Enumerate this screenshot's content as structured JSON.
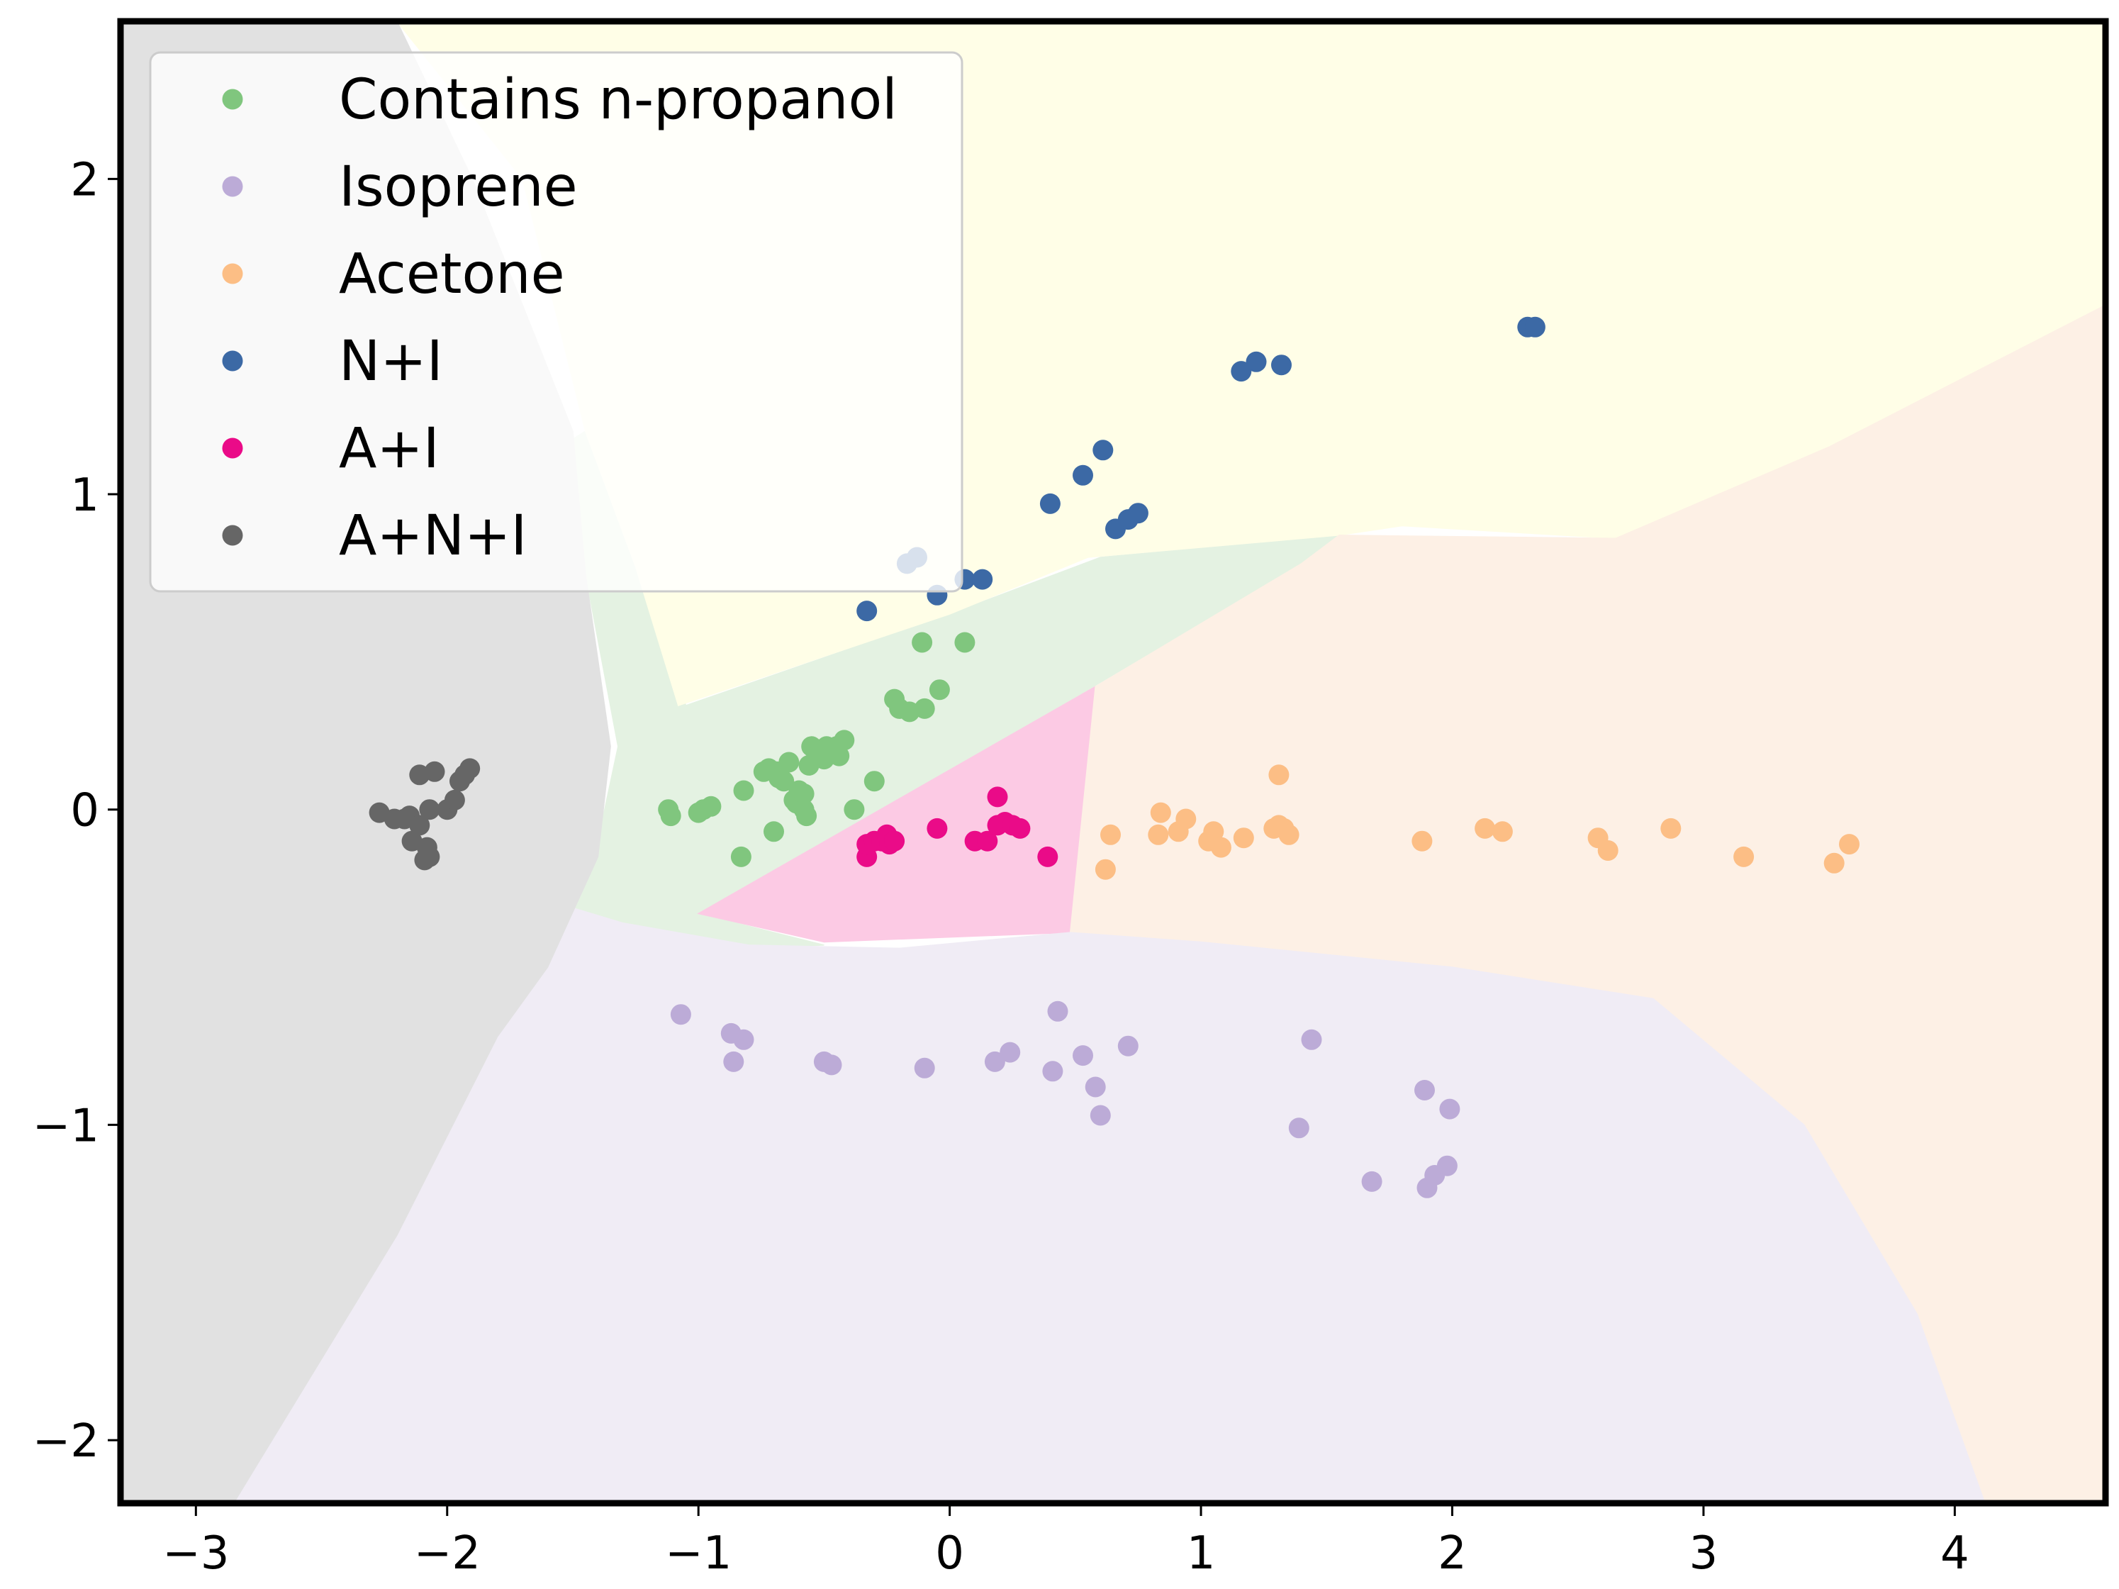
{
  "chart_data": {
    "type": "scatter",
    "title": "",
    "xlabel": "",
    "ylabel": "",
    "xlim": [
      -3.3,
      4.6
    ],
    "ylim": [
      -2.2,
      2.5
    ],
    "xticks": [
      -3,
      -2,
      -1,
      0,
      1,
      2,
      3,
      4
    ],
    "yticks": [
      -2,
      -1,
      0,
      1,
      2
    ],
    "xtick_labels": [
      "−3",
      "−2",
      "−1",
      "0",
      "1",
      "2",
      "3",
      "4"
    ],
    "ytick_labels": [
      "−2",
      "−1",
      "0",
      "1",
      "2"
    ],
    "grid": false,
    "legend_position": "top-left",
    "regions": [
      {
        "class": "Contains n-propanol",
        "color": "#e4f2e2",
        "polygon": [
          [
            -1.55,
            1.15
          ],
          [
            -1.45,
            0.75
          ],
          [
            -1.32,
            0.2
          ],
          [
            -1.4,
            -0.1
          ],
          [
            -1.6,
            -0.55
          ],
          [
            -1.1,
            -0.45
          ],
          [
            -0.5,
            -0.43
          ],
          [
            -1.0,
            -0.33
          ],
          [
            0.55,
            0.38
          ],
          [
            1.4,
            0.78
          ],
          [
            1.55,
            0.87
          ],
          [
            0.6,
            0.8
          ],
          [
            0,
            0.62
          ],
          [
            -1.05,
            0.33
          ],
          [
            -1.25,
            0.77
          ],
          [
            -1.45,
            1.2
          ]
        ]
      },
      {
        "class": "N+I",
        "color": "#fffee7",
        "polygon": [
          [
            -2.2,
            2.5
          ],
          [
            4.6,
            2.5
          ],
          [
            4.6,
            1.6
          ],
          [
            3.5,
            1.15
          ],
          [
            2.65,
            0.86
          ],
          [
            1.8,
            0.9
          ],
          [
            1.55,
            0.87
          ],
          [
            0.55,
            0.8
          ],
          [
            0,
            0.62
          ],
          [
            -1.08,
            0.33
          ],
          [
            -1.25,
            0.77
          ],
          [
            -1.45,
            1.2
          ],
          [
            -1.7,
            2.0
          ]
        ]
      },
      {
        "class": "A+I",
        "color": "#fccae4",
        "polygon": [
          [
            -1.0,
            -0.33
          ],
          [
            0.58,
            0.39
          ],
          [
            0.48,
            -0.39
          ],
          [
            -0.5,
            -0.42
          ]
        ]
      },
      {
        "class": "Acetone",
        "color": "#fdf0e5",
        "polygon": [
          [
            0.58,
            0.39
          ],
          [
            1.4,
            0.78
          ],
          [
            1.55,
            0.87
          ],
          [
            2.65,
            0.86
          ],
          [
            3.5,
            1.15
          ],
          [
            4.6,
            1.6
          ],
          [
            4.6,
            -2.2
          ],
          [
            4.12,
            -2.2
          ],
          [
            3.85,
            -1.6
          ],
          [
            3.4,
            -1.0
          ],
          [
            2.8,
            -0.6
          ],
          [
            2.0,
            -0.5
          ],
          [
            1.0,
            -0.42
          ],
          [
            0.48,
            -0.39
          ]
        ]
      },
      {
        "class": "Isoprene",
        "color": "#f0ecf5",
        "polygon": [
          [
            -1.55,
            -0.3
          ],
          [
            -1.3,
            -0.36
          ],
          [
            -0.8,
            -0.43
          ],
          [
            -0.2,
            -0.44
          ],
          [
            0.48,
            -0.39
          ],
          [
            1.0,
            -0.42
          ],
          [
            2.0,
            -0.5
          ],
          [
            2.8,
            -0.6
          ],
          [
            3.4,
            -1.0
          ],
          [
            3.85,
            -1.6
          ],
          [
            4.12,
            -2.2
          ],
          [
            -2.85,
            -2.2
          ],
          [
            -2.2,
            -1.35
          ],
          [
            -1.8,
            -0.72
          ],
          [
            -1.65,
            -0.5
          ]
        ]
      },
      {
        "class": "A+N+I",
        "color": "#e1e1e1",
        "polygon": [
          [
            -3.3,
            2.5
          ],
          [
            -2.2,
            2.5
          ],
          [
            -1.9,
            2.0
          ],
          [
            -1.65,
            1.5
          ],
          [
            -1.5,
            1.2
          ],
          [
            -1.45,
            0.75
          ],
          [
            -1.35,
            0.2
          ],
          [
            -1.4,
            -0.15
          ],
          [
            -1.6,
            -0.5
          ],
          [
            -1.8,
            -0.72
          ],
          [
            -2.2,
            -1.35
          ],
          [
            -2.85,
            -2.2
          ],
          [
            -3.3,
            -2.2
          ]
        ]
      }
    ],
    "series": [
      {
        "name": "Contains n-propanol",
        "color": "#80c67e",
        "points": [
          [
            -1.12,
            0.0
          ],
          [
            -1.11,
            -0.02
          ],
          [
            -1.0,
            -0.01
          ],
          [
            -0.98,
            0.0
          ],
          [
            -0.95,
            0.01
          ],
          [
            -0.83,
            -0.15
          ],
          [
            -0.82,
            0.06
          ],
          [
            -0.74,
            0.12
          ],
          [
            -0.72,
            0.13
          ],
          [
            -0.7,
            -0.07
          ],
          [
            -0.69,
            0.12
          ],
          [
            -0.68,
            0.1
          ],
          [
            -0.66,
            0.09
          ],
          [
            -0.64,
            0.15
          ],
          [
            -0.62,
            0.03
          ],
          [
            -0.61,
            0.02
          ],
          [
            -0.6,
            0.06
          ],
          [
            -0.58,
            0.05
          ],
          [
            -0.58,
            0.0
          ],
          [
            -0.57,
            -0.02
          ],
          [
            -0.56,
            0.14
          ],
          [
            -0.55,
            0.2
          ],
          [
            -0.53,
            0.17
          ],
          [
            -0.51,
            0.18
          ],
          [
            -0.5,
            0.16
          ],
          [
            -0.49,
            0.2
          ],
          [
            -0.47,
            0.19
          ],
          [
            -0.45,
            0.2
          ],
          [
            -0.44,
            0.17
          ],
          [
            -0.42,
            0.22
          ],
          [
            -0.38,
            0.0
          ],
          [
            -0.3,
            0.09
          ],
          [
            -0.22,
            0.35
          ],
          [
            -0.2,
            0.32
          ],
          [
            -0.16,
            0.31
          ],
          [
            -0.11,
            0.53
          ],
          [
            -0.1,
            0.32
          ],
          [
            -0.04,
            0.38
          ],
          [
            0.06,
            0.53
          ]
        ]
      },
      {
        "name": "Isoprene",
        "color": "#bcabd7",
        "points": [
          [
            -1.07,
            -0.65
          ],
          [
            -0.87,
            -0.71
          ],
          [
            -0.86,
            -0.8
          ],
          [
            -0.82,
            -0.73
          ],
          [
            -0.5,
            -0.8
          ],
          [
            -0.47,
            -0.81
          ],
          [
            -0.1,
            -0.82
          ],
          [
            0.18,
            -0.8
          ],
          [
            0.24,
            -0.77
          ],
          [
            0.41,
            -0.83
          ],
          [
            0.43,
            -0.64
          ],
          [
            0.53,
            -0.78
          ],
          [
            0.58,
            -0.88
          ],
          [
            0.6,
            -0.97
          ],
          [
            0.71,
            -0.75
          ],
          [
            1.39,
            -1.01
          ],
          [
            1.44,
            -0.73
          ],
          [
            1.68,
            -1.18
          ],
          [
            1.89,
            -0.89
          ],
          [
            1.9,
            -1.2
          ],
          [
            1.93,
            -1.16
          ],
          [
            1.98,
            -1.13
          ],
          [
            1.99,
            -0.95
          ]
        ]
      },
      {
        "name": "Acetone",
        "color": "#fcbe85",
        "points": [
          [
            0.62,
            -0.19
          ],
          [
            0.64,
            -0.08
          ],
          [
            0.83,
            -0.08
          ],
          [
            0.84,
            -0.01
          ],
          [
            0.91,
            -0.07
          ],
          [
            0.94,
            -0.03
          ],
          [
            1.03,
            -0.1
          ],
          [
            1.05,
            -0.07
          ],
          [
            1.08,
            -0.12
          ],
          [
            1.17,
            -0.09
          ],
          [
            1.29,
            -0.06
          ],
          [
            1.31,
            0.11
          ],
          [
            1.31,
            -0.05
          ],
          [
            1.33,
            -0.06
          ],
          [
            1.35,
            -0.08
          ],
          [
            1.88,
            -0.1
          ],
          [
            2.13,
            -0.06
          ],
          [
            2.2,
            -0.07
          ],
          [
            2.58,
            -0.09
          ],
          [
            2.62,
            -0.13
          ],
          [
            2.87,
            -0.06
          ],
          [
            3.16,
            -0.15
          ],
          [
            3.52,
            -0.17
          ],
          [
            3.58,
            -0.11
          ]
        ]
      },
      {
        "name": "N+I",
        "color": "#3c69a5",
        "points": [
          [
            -0.33,
            0.63
          ],
          [
            -0.17,
            0.78
          ],
          [
            -0.13,
            0.8
          ],
          [
            -0.05,
            0.68
          ],
          [
            0.06,
            0.73
          ],
          [
            0.13,
            0.73
          ],
          [
            0.4,
            0.97
          ],
          [
            0.53,
            1.06
          ],
          [
            0.61,
            1.14
          ],
          [
            0.66,
            0.89
          ],
          [
            0.71,
            0.92
          ],
          [
            0.75,
            0.94
          ],
          [
            1.16,
            1.39
          ],
          [
            1.22,
            1.42
          ],
          [
            1.32,
            1.41
          ],
          [
            2.3,
            1.53
          ],
          [
            2.33,
            1.53
          ]
        ]
      },
      {
        "name": "A+I",
        "color": "#ea0b88",
        "points": [
          [
            -0.33,
            -0.15
          ],
          [
            -0.33,
            -0.11
          ],
          [
            -0.3,
            -0.1
          ],
          [
            -0.27,
            -0.1
          ],
          [
            -0.25,
            -0.08
          ],
          [
            -0.24,
            -0.11
          ],
          [
            -0.22,
            -0.1
          ],
          [
            -0.05,
            -0.06
          ],
          [
            0.1,
            -0.1
          ],
          [
            0.15,
            -0.1
          ],
          [
            0.19,
            0.04
          ],
          [
            0.19,
            -0.05
          ],
          [
            0.22,
            -0.04
          ],
          [
            0.25,
            -0.05
          ],
          [
            0.28,
            -0.06
          ],
          [
            0.39,
            -0.15
          ]
        ]
      },
      {
        "name": "A+N+I",
        "color": "#666666",
        "points": [
          [
            -2.27,
            -0.01
          ],
          [
            -2.21,
            -0.03
          ],
          [
            -2.17,
            -0.03
          ],
          [
            -2.15,
            -0.02
          ],
          [
            -2.14,
            -0.1
          ],
          [
            -2.11,
            -0.05
          ],
          [
            -2.11,
            0.11
          ],
          [
            -2.09,
            -0.16
          ],
          [
            -2.08,
            -0.12
          ],
          [
            -2.07,
            0.0
          ],
          [
            -2.07,
            -0.15
          ],
          [
            -2.05,
            0.12
          ],
          [
            -2.0,
            0.0
          ],
          [
            -1.97,
            0.03
          ],
          [
            -1.95,
            0.09
          ],
          [
            -1.93,
            0.11
          ],
          [
            -1.91,
            0.13
          ]
        ]
      }
    ]
  }
}
